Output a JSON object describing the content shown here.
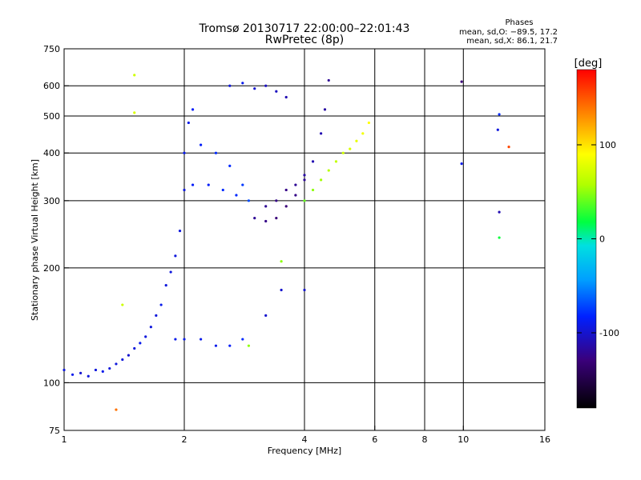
{
  "chart_data": {
    "type": "scatter",
    "title": "Tromsø 20130717 22:00:00–22:01:43",
    "subtitle": "RwPretec (8p)",
    "xlabel": "Frequency [MHz]",
    "ylabel": "Stationary phase Virtual Height [km]",
    "x_scale": "log",
    "y_scale": "log",
    "xlim": [
      1,
      16
    ],
    "ylim": [
      75,
      750
    ],
    "x_ticks": [
      1,
      2,
      4,
      6,
      8,
      10,
      16
    ],
    "x_tick_labels": [
      "1",
      "2",
      "4",
      "6",
      "8",
      "10",
      "16"
    ],
    "y_ticks": [
      75,
      100,
      200,
      300,
      400,
      500,
      600,
      750
    ],
    "y_tick_labels": [
      "75",
      "100",
      "200",
      "300",
      "400",
      "500",
      "600",
      "750"
    ],
    "grid_x": [
      2,
      4,
      6,
      8,
      10
    ],
    "grid_y": [
      100,
      200,
      300,
      400,
      500,
      600
    ],
    "grid": true,
    "stats": {
      "header": "Phases",
      "line1": "mean, sd,O: −89.5, 17.2",
      "line2": "mean, sd,X:  86.1, 21.7"
    },
    "colorbar": {
      "unit": "[deg]",
      "range": [
        -180,
        180
      ],
      "ticks": [
        100,
        0,
        -100
      ],
      "tick_labels": [
        "100",
        "0",
        "-100"
      ]
    },
    "series": [
      {
        "color_by": "phase_deg",
        "points": [
          [
            1.0,
            108,
            -95
          ],
          [
            1.05,
            105,
            -90
          ],
          [
            1.1,
            106,
            -100
          ],
          [
            1.15,
            104,
            -95
          ],
          [
            1.2,
            108,
            -95
          ],
          [
            1.25,
            107,
            -90
          ],
          [
            1.3,
            109,
            -95
          ],
          [
            1.35,
            112,
            -95
          ],
          [
            1.4,
            115,
            -95
          ],
          [
            1.45,
            118,
            -100
          ],
          [
            1.5,
            123,
            -95
          ],
          [
            1.55,
            127,
            -90
          ],
          [
            1.6,
            132,
            -95
          ],
          [
            1.65,
            140,
            -95
          ],
          [
            1.7,
            150,
            -95
          ],
          [
            1.75,
            160,
            -90
          ],
          [
            1.8,
            180,
            -95
          ],
          [
            1.85,
            195,
            -95
          ],
          [
            1.9,
            215,
            -95
          ],
          [
            1.95,
            250,
            -95
          ],
          [
            2.0,
            320,
            -95
          ],
          [
            2.0,
            400,
            -90
          ],
          [
            2.05,
            480,
            -90
          ],
          [
            2.1,
            520,
            -85
          ],
          [
            1.9,
            130,
            -90
          ],
          [
            2.0,
            130,
            -90
          ],
          [
            2.2,
            130,
            -90
          ],
          [
            2.4,
            125,
            -90
          ],
          [
            2.6,
            125,
            -85
          ],
          [
            2.8,
            130,
            -80
          ],
          [
            2.1,
            330,
            -85
          ],
          [
            2.3,
            330,
            -85
          ],
          [
            2.5,
            320,
            -80
          ],
          [
            2.7,
            310,
            -80
          ],
          [
            2.9,
            300,
            -70
          ],
          [
            2.2,
            420,
            -85
          ],
          [
            2.4,
            400,
            -80
          ],
          [
            2.6,
            370,
            -80
          ],
          [
            2.8,
            330,
            -75
          ],
          [
            2.6,
            600,
            -95
          ],
          [
            2.8,
            610,
            -90
          ],
          [
            3.0,
            590,
            -100
          ],
          [
            3.2,
            600,
            -105
          ],
          [
            3.4,
            580,
            -105
          ],
          [
            3.6,
            560,
            -110
          ],
          [
            3.0,
            270,
            -120
          ],
          [
            3.2,
            265,
            -125
          ],
          [
            3.4,
            270,
            -130
          ],
          [
            3.6,
            290,
            -130
          ],
          [
            3.8,
            310,
            -125
          ],
          [
            4.0,
            340,
            -120
          ],
          [
            4.2,
            380,
            -110
          ],
          [
            4.4,
            450,
            -110
          ],
          [
            4.5,
            520,
            -115
          ],
          [
            4.6,
            620,
            -120
          ],
          [
            3.2,
            290,
            -120
          ],
          [
            3.4,
            300,
            -125
          ],
          [
            3.6,
            320,
            -125
          ],
          [
            3.8,
            330,
            -120
          ],
          [
            4.0,
            350,
            -115
          ],
          [
            4.0,
            300,
            40
          ],
          [
            4.2,
            320,
            50
          ],
          [
            4.4,
            340,
            55
          ],
          [
            4.6,
            360,
            60
          ],
          [
            4.8,
            380,
            65
          ],
          [
            5.0,
            400,
            70
          ],
          [
            5.2,
            410,
            75
          ],
          [
            5.4,
            430,
            80
          ],
          [
            5.6,
            450,
            85
          ],
          [
            5.8,
            480,
            90
          ],
          [
            2.9,
            125,
            50
          ],
          [
            3.5,
            208,
            50
          ],
          [
            4.0,
            175,
            -100
          ],
          [
            3.5,
            175,
            -100
          ],
          [
            3.2,
            150,
            -100
          ],
          [
            9.9,
            615,
            -130
          ],
          [
            9.9,
            375,
            -90
          ],
          [
            12.3,
            505,
            -80
          ],
          [
            13.0,
            415,
            155
          ],
          [
            12.2,
            460,
            -95
          ],
          [
            12.3,
            280,
            -110
          ],
          [
            12.3,
            240,
            20
          ],
          [
            1.5,
            640,
            70
          ],
          [
            1.5,
            510,
            75
          ],
          [
            1.4,
            160,
            70
          ],
          [
            1.35,
            85,
            140
          ]
        ]
      }
    ]
  }
}
